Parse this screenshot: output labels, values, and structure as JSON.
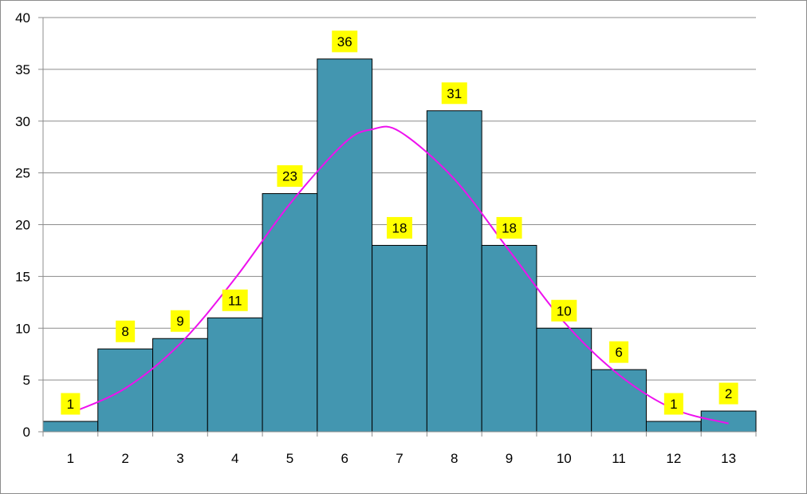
{
  "chart_data": {
    "type": "bar",
    "categories": [
      "1",
      "2",
      "3",
      "4",
      "5",
      "6",
      "7",
      "8",
      "9",
      "10",
      "11",
      "12",
      "13"
    ],
    "values": [
      1,
      8,
      9,
      11,
      23,
      36,
      18,
      31,
      18,
      10,
      6,
      1,
      2
    ],
    "yticks": [
      "0",
      "5",
      "10",
      "15",
      "20",
      "25",
      "30",
      "35",
      "40"
    ],
    "ylim": [
      0,
      40
    ],
    "grid": true,
    "trend_curve": {
      "type": "smoothed-line",
      "x": [
        1,
        2,
        3,
        4,
        5,
        6,
        6.5,
        7,
        8,
        9,
        10,
        11,
        12,
        13
      ],
      "y": [
        1.8,
        4.2,
        8.5,
        14.8,
        22.0,
        27.9,
        29.2,
        29.0,
        24.4,
        17.5,
        10.6,
        5.5,
        2.2,
        0.8
      ]
    },
    "colors": {
      "bar_fill": "#4396b0",
      "bar_stroke": "#000000",
      "curve": "#ee11ee",
      "label_bg": "#ffff00",
      "grid": "#8c8c8c",
      "axis": "#8c8c8c"
    }
  }
}
